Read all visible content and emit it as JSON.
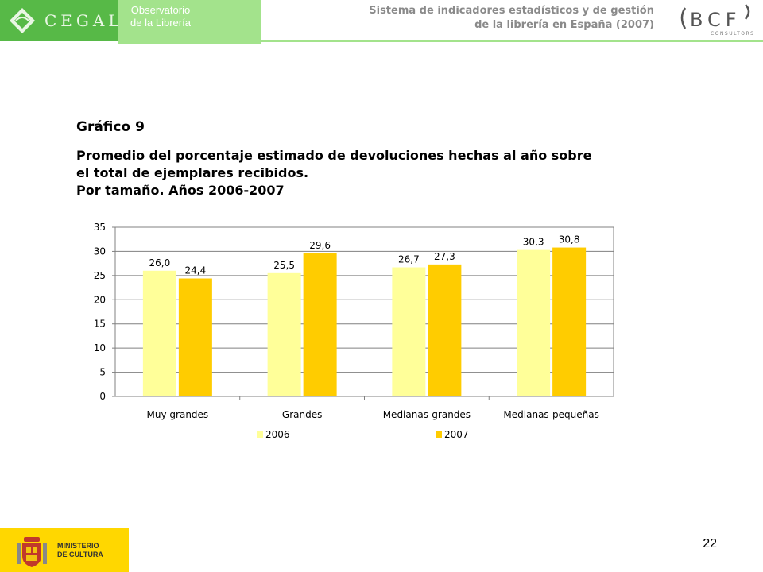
{
  "header": {
    "cegal_text": "CEGAL",
    "observatorio": [
      "Observatorio",
      "de la Librería"
    ],
    "system_title": [
      "Sistema de indicadores estadísticos y de gestión",
      "de la librería en España (2007)"
    ],
    "bcf_letters": "BCF",
    "bcf_sub": "CONSULTORS"
  },
  "figure": {
    "label": "Gráfico 9",
    "title_lines": [
      "Promedio del porcentaje estimado de devoluciones hechas al año sobre",
      "el total de ejemplares recibidos.",
      "Por tamaño. Años 2006-2007"
    ]
  },
  "chart_data": {
    "type": "bar",
    "categories": [
      "Muy grandes",
      "Grandes",
      "Medianas-grandes",
      "Medianas-pequeñas"
    ],
    "series": [
      {
        "name": "2006",
        "values": [
          26.0,
          25.5,
          26.7,
          30.3
        ],
        "labels": [
          "26,0",
          "25,5",
          "26,7",
          "30,3"
        ],
        "color": "#ffff99"
      },
      {
        "name": "2007",
        "values": [
          24.4,
          29.6,
          27.3,
          30.8
        ],
        "labels": [
          "24,4",
          "29,6",
          "27,3",
          "30,8"
        ],
        "color": "#ffcc00"
      }
    ],
    "ylim": [
      0,
      35
    ],
    "yticks": [
      0,
      5,
      10,
      15,
      20,
      25,
      30,
      35
    ],
    "grid": true,
    "legend": "bottom",
    "xlabel": "",
    "ylabel": ""
  },
  "footer": {
    "ministerio": [
      "MINISTERIO",
      "DE CULTURA"
    ],
    "page_number": "22"
  },
  "colors": {
    "cegal_green": "#57b947",
    "observatorio_green": "#a3e38c",
    "ministerio_yellow": "#ffd700"
  }
}
